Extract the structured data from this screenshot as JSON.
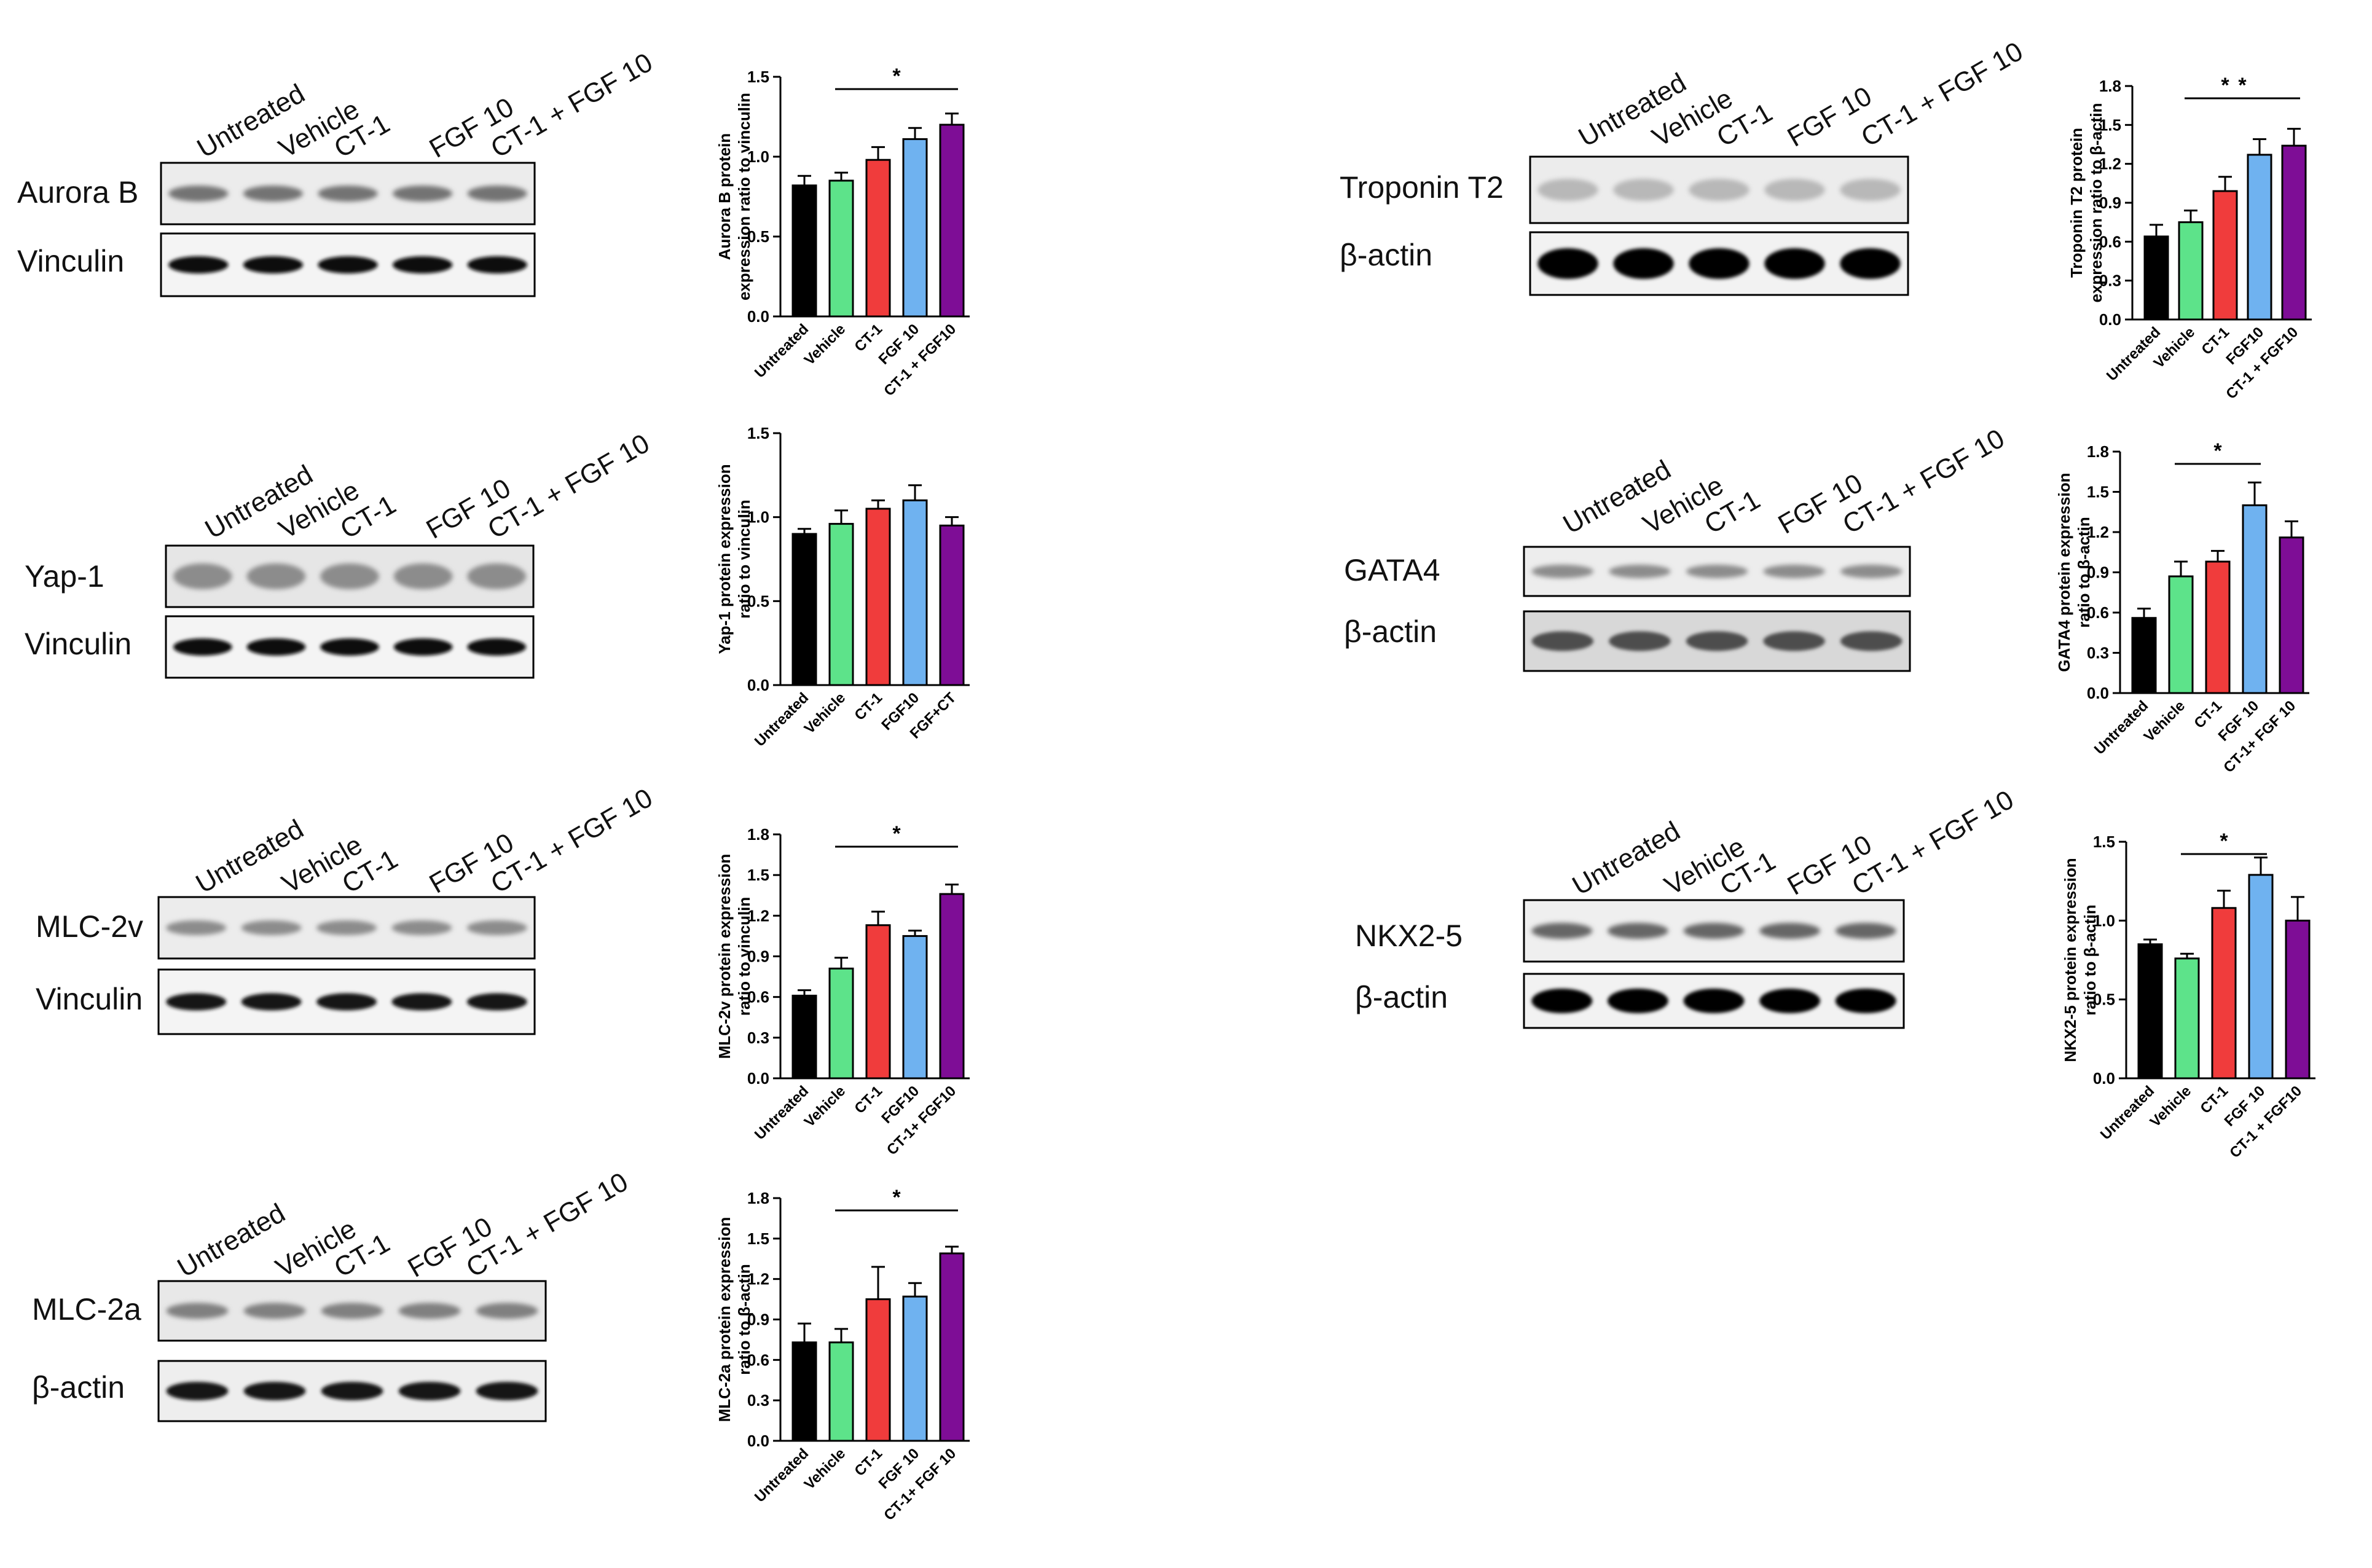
{
  "colors": {
    "untreated": "#000000",
    "vehicle": "#5de38a",
    "ct1": "#f03c3c",
    "fgf10": "#6fb2f0",
    "combo": "#7e0d96"
  },
  "blots": [
    {
      "id": "aurora",
      "lanes": [
        "Untreated",
        "Vehicle",
        "CT-1",
        "FGF 10",
        "CT-1 + FGF 10"
      ],
      "rows": [
        "Aurora B",
        "Vinculin"
      ]
    },
    {
      "id": "yap",
      "lanes": [
        "Untreated",
        "Vehicle",
        "CT-1",
        "FGF 10",
        "CT-1 + FGF 10"
      ],
      "rows": [
        "Yap-1",
        "Vinculin"
      ]
    },
    {
      "id": "mlc2v",
      "lanes": [
        "Untreated",
        "Vehicle",
        "CT-1",
        "FGF 10",
        "CT-1 + FGF 10"
      ],
      "rows": [
        "MLC-2v",
        "Vinculin"
      ]
    },
    {
      "id": "mlc2a",
      "lanes": [
        "Untreated",
        "Vehicle",
        "CT-1",
        "FGF 10",
        "CT-1 + FGF 10"
      ],
      "rows": [
        "MLC-2a",
        "β-actin"
      ]
    },
    {
      "id": "tnnt2",
      "lanes": [
        "Untreated",
        "Vehicle",
        "CT-1",
        "FGF 10",
        "CT-1 + FGF 10"
      ],
      "rows": [
        "Troponin T2",
        "β-actin"
      ]
    },
    {
      "id": "gata4",
      "lanes": [
        "Untreated",
        "Vehicle",
        "CT-1",
        "FGF 10",
        "CT-1 + FGF 10"
      ],
      "rows": [
        "GATA4",
        "β-actin"
      ]
    },
    {
      "id": "nkx25",
      "lanes": [
        "Untreated",
        "Vehicle",
        "CT-1",
        "FGF 10",
        "CT-1 + FGF 10"
      ],
      "rows": [
        "NKX2-5",
        "β-actin"
      ]
    }
  ],
  "chart_data": [
    {
      "id": "aurora",
      "type": "bar",
      "ylabel": "Aurora B protein expression ratio to vinculin",
      "categories": [
        "Untreated",
        "Vehicle",
        "CT-1",
        "FGF 10",
        "CT-1 + FGF10"
      ],
      "values": [
        0.82,
        0.85,
        0.98,
        1.11,
        1.2
      ],
      "errors": [
        0.06,
        0.05,
        0.08,
        0.07,
        0.07
      ],
      "ylim": [
        0,
        1.5
      ],
      "yticks": [
        "0.0",
        "0.5",
        "1.0",
        "1.5"
      ],
      "significance": [
        {
          "from": 1,
          "to": 4,
          "label": "*"
        }
      ]
    },
    {
      "id": "yap",
      "type": "bar",
      "ylabel": "Yap-1 protein expression ratio to vinculin",
      "categories": [
        "Untreated",
        "Vehicle",
        "CT-1",
        "FGF10",
        "FGF+CT"
      ],
      "values": [
        0.9,
        0.96,
        1.05,
        1.1,
        0.95
      ],
      "errors": [
        0.03,
        0.08,
        0.05,
        0.09,
        0.05
      ],
      "ylim": [
        0,
        1.5
      ],
      "yticks": [
        "0.0",
        "0.5",
        "1.0",
        "1.5"
      ],
      "significance": []
    },
    {
      "id": "mlc2v",
      "type": "bar",
      "ylabel": "MLC-2v protein expression ratio to vinculin",
      "categories": [
        "Untreated",
        "Vehicle",
        "CT-1",
        "FGF10",
        "CT-1+ FGF10"
      ],
      "values": [
        0.61,
        0.81,
        1.13,
        1.05,
        1.36
      ],
      "errors": [
        0.04,
        0.08,
        0.1,
        0.04,
        0.07
      ],
      "ylim": [
        0,
        1.8
      ],
      "yticks": [
        "0.0",
        "0.3",
        "0.6",
        "0.9",
        "1.2",
        "1.5",
        "1.8"
      ],
      "significance": [
        {
          "from": 1,
          "to": 4,
          "label": "*"
        }
      ]
    },
    {
      "id": "mlc2a",
      "type": "bar",
      "ylabel": "MLC-2a protein expression ratio to β-actin",
      "categories": [
        "Untreated",
        "Vehicle",
        "CT-1",
        "FGF 10",
        "CT-1+ FGF 10"
      ],
      "values": [
        0.73,
        0.73,
        1.05,
        1.07,
        1.39
      ],
      "errors": [
        0.14,
        0.1,
        0.24,
        0.1,
        0.05
      ],
      "ylim": [
        0,
        1.8
      ],
      "yticks": [
        "0.0",
        "0.3",
        "0.6",
        "0.9",
        "1.2",
        "1.5",
        "1.8"
      ],
      "significance": [
        {
          "from": 1,
          "to": 4,
          "label": "*"
        }
      ]
    },
    {
      "id": "tnnt2",
      "type": "bar",
      "ylabel": "Troponin T2 protein expression ratio to β-actin",
      "categories": [
        "Untreated",
        "Vehicle",
        "CT-1",
        "FGF10",
        "CT-1 + FGF10"
      ],
      "values": [
        0.64,
        0.75,
        0.99,
        1.27,
        1.34
      ],
      "errors": [
        0.09,
        0.09,
        0.11,
        0.12,
        0.13
      ],
      "ylim": [
        0,
        1.8
      ],
      "yticks": [
        "0.0",
        "0.3",
        "0.6",
        "0.9",
        "1.2",
        "1.5",
        "1.8"
      ],
      "significance": [
        {
          "from": 1,
          "to": 3,
          "label": "*"
        },
        {
          "from": 1,
          "to": 4,
          "label": "*"
        }
      ]
    },
    {
      "id": "gata4",
      "type": "bar",
      "ylabel": "GATA4 protein expression ratio to β-actin",
      "categories": [
        "Untreated",
        "Vehicle",
        "CT-1",
        "FGF 10",
        "CT-1+ FGF 10"
      ],
      "values": [
        0.56,
        0.87,
        0.98,
        1.4,
        1.16
      ],
      "errors": [
        0.07,
        0.11,
        0.08,
        0.17,
        0.12
      ],
      "ylim": [
        0,
        1.8
      ],
      "yticks": [
        "0.0",
        "0.3",
        "0.6",
        "0.9",
        "1.2",
        "1.5",
        "1.8"
      ],
      "significance": [
        {
          "from": 1,
          "to": 3,
          "label": "*"
        }
      ]
    },
    {
      "id": "nkx25",
      "type": "bar",
      "ylabel": "NKX2-5 protein expression ratio to β-actin",
      "categories": [
        "Untreated",
        "Vehicle",
        "CT-1",
        "FGF 10",
        "CT-1 + FGF10"
      ],
      "values": [
        0.85,
        0.76,
        1.08,
        1.29,
        1.0
      ],
      "errors": [
        0.03,
        0.03,
        0.11,
        0.11,
        0.15
      ],
      "ylim": [
        0,
        1.5
      ],
      "yticks": [
        "0.0",
        "0.5",
        "1.0",
        "1.5"
      ],
      "significance": [
        {
          "from": 1,
          "to": 3,
          "label": "*"
        }
      ]
    }
  ]
}
